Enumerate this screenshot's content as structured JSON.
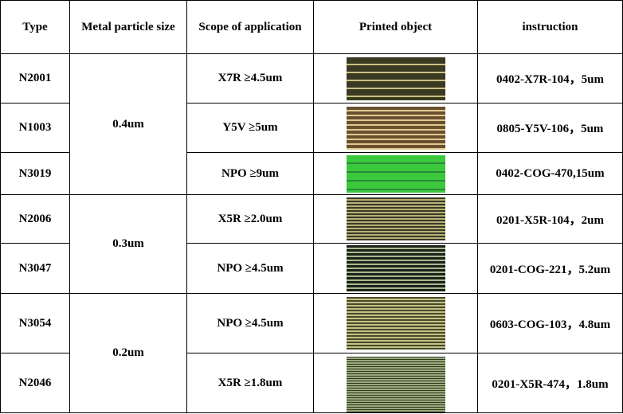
{
  "headers": [
    "Type",
    "Metal particle size",
    "Scope of application",
    "Printed object",
    "instruction"
  ],
  "particle_groups": [
    "0.4um",
    "0.3um",
    "0.2um"
  ],
  "rows": [
    {
      "type": "N2001",
      "scope": "X7R ≥4.5um",
      "instruction": "0402-X7R-104，5um",
      "image": {
        "base": "#3a3a22",
        "line": "#c8c080"
      }
    },
    {
      "type": "N1003",
      "scope": "Y5V ≥5um",
      "instruction": "0805-Y5V-106，5um",
      "image": {
        "base": "#6a5030",
        "line": "#e0c890"
      }
    },
    {
      "type": "N3019",
      "scope": "NPO ≥9um",
      "instruction": "0402-COG-470,15um",
      "image": {
        "base": "#3cc83c",
        "line": "#2a8a3a"
      }
    },
    {
      "type": "N2006",
      "scope": "X5R ≥2.0um",
      "instruction": "0201-X5R-104，2um",
      "image": {
        "base": "#3a3a24",
        "line": "#b8b078"
      }
    },
    {
      "type": "N3047",
      "scope": "NPO ≥4.5um",
      "instruction": "0201-COG-221，5.2um",
      "image": {
        "base": "#1c2218",
        "line": "#a8b890"
      }
    },
    {
      "type": "N3054",
      "scope": "NPO ≥4.5um",
      "instruction": "0603-COG-103，4.8um",
      "image": {
        "base": "#4a4a2a",
        "line": "#c0c088"
      }
    },
    {
      "type": "N2046",
      "scope": "X5R ≥1.8um",
      "instruction": "0201-X5R-474，1.8um",
      "image": {
        "base": "#2e3a22",
        "line": "#98a878"
      }
    }
  ]
}
